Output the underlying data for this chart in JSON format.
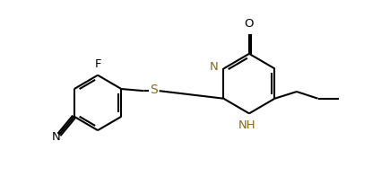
{
  "bg_color": "#ffffff",
  "line_color": "#000000",
  "n_color": "#8B6914",
  "lw": 1.5,
  "font_size": 9.5,
  "xlim": [
    0,
    10
  ],
  "ylim": [
    0,
    5
  ]
}
